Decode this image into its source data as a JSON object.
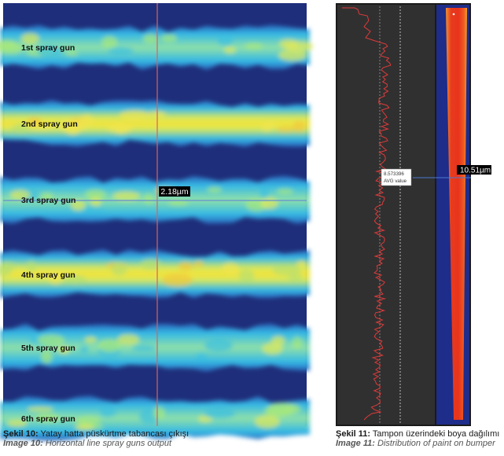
{
  "figure10": {
    "band_labels": [
      "1st spray gun",
      "2nd spray gun",
      "3rd spray gun",
      "4th spray gun",
      "5th spray gun",
      "6th spray gun"
    ],
    "measurement": "2.18µm",
    "caption_tr_label": "Şekil 10:",
    "caption_tr_text": "Yatay hatta püskürtme tabancası çıkışı",
    "caption_en_label": "Image 10:",
    "caption_en_text": "Horizontal line spray guns output"
  },
  "figure11": {
    "avg_value": "8.573396",
    "avg_label": "AVG value",
    "measurement": "10.51µm",
    "caption_tr_label": "Şekil 11:",
    "caption_tr_text": "Tampon üzerindeki boya dağılımı",
    "caption_en_label": "Image 11:",
    "caption_en_text": "Distribution of paint on bumper"
  },
  "colors": {
    "background_dark": "#1f2e7a",
    "band_cyan": "#33b8e6",
    "band_yellow": "#e8e84a",
    "crosshair": "#e0605a",
    "graph_bg": "#303030",
    "graph_line": "#e03a3a",
    "bumper_red": "#e8341c",
    "bumper_orange": "#f5a020"
  }
}
